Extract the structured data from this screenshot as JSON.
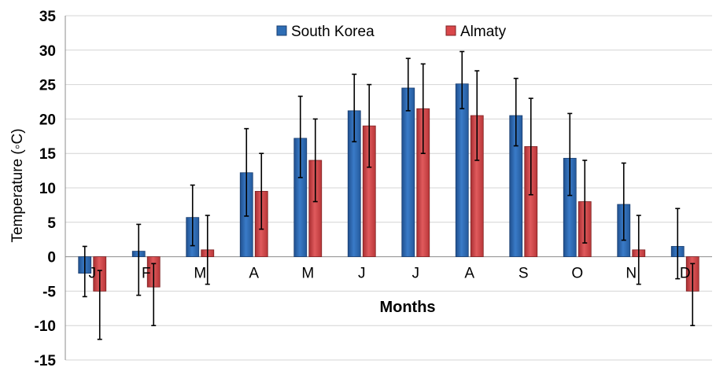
{
  "chart_data": {
    "type": "bar",
    "title": "",
    "xlabel": "Months",
    "ylabel": "Temperature (◦C)",
    "ylim": [
      -15,
      35
    ],
    "yticks": [
      35,
      30,
      25,
      20,
      15,
      10,
      5,
      0,
      -5,
      -10,
      -15
    ],
    "grid": true,
    "legend_position": "top-center",
    "categories": [
      "J",
      "F",
      "M",
      "A",
      "M",
      "J",
      "J",
      "A",
      "S",
      "O",
      "N",
      "D"
    ],
    "series": [
      {
        "name": "South Korea",
        "color": "#2E6DB4",
        "values": [
          -2.4,
          0.8,
          5.7,
          12.2,
          17.2,
          21.2,
          24.5,
          25.1,
          20.5,
          14.3,
          7.6,
          1.5
        ],
        "error_low": [
          -5.8,
          -5.6,
          1.6,
          5.9,
          11.5,
          16.7,
          21.2,
          21.5,
          16.1,
          8.9,
          2.4,
          -3.2
        ],
        "error_high": [
          1.5,
          4.7,
          10.4,
          18.6,
          23.3,
          26.5,
          28.8,
          29.8,
          25.9,
          20.8,
          13.6,
          7.0
        ]
      },
      {
        "name": "Almaty",
        "color": "#D9474A",
        "values": [
          -5.0,
          -4.4,
          1.0,
          9.5,
          14.0,
          19.0,
          21.5,
          20.5,
          16.0,
          8.0,
          1.0,
          -5.0
        ],
        "error_low": [
          -12.0,
          -10.0,
          -4.0,
          4.0,
          8.0,
          13.0,
          15.0,
          14.0,
          9.0,
          2.0,
          -4.0,
          -10.0
        ],
        "error_high": [
          -2.0,
          -1.0,
          6.0,
          15.0,
          20.0,
          25.0,
          28.0,
          27.0,
          23.0,
          14.0,
          6.0,
          -1.0
        ]
      }
    ]
  }
}
